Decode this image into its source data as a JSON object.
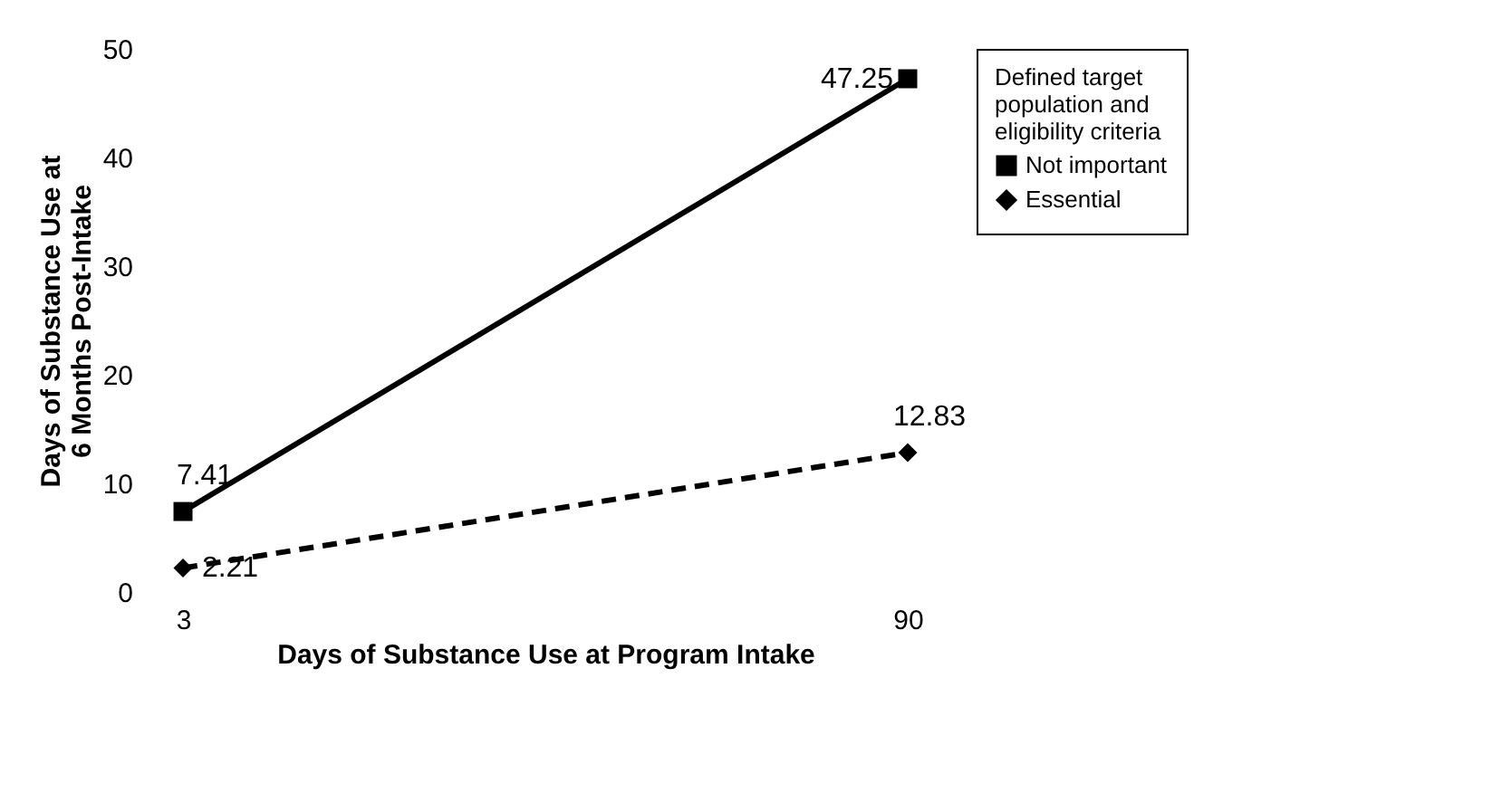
{
  "chart_data": {
    "type": "line",
    "xlabel": "Days of Substance Use at Program Intake",
    "ylabel": "Days of Substance Use at 6 Months Post-Intake",
    "legend_title": "Defined target population and eligibility criteria",
    "categories": [
      "3",
      "90"
    ],
    "series": [
      {
        "name": "Not important",
        "color": "#000000",
        "values": [
          7.41,
          47.25
        ],
        "marker": "square",
        "line_style": "solid"
      },
      {
        "name": "Essential",
        "color": "#000000",
        "values": [
          2.21,
          12.83
        ],
        "marker": "diamond",
        "line_style": "dashed"
      }
    ],
    "ylim": [
      0,
      50
    ],
    "yticks": [
      0,
      10,
      20,
      30,
      40,
      50
    ],
    "grid": false,
    "legend": "right",
    "data_labels": true
  }
}
